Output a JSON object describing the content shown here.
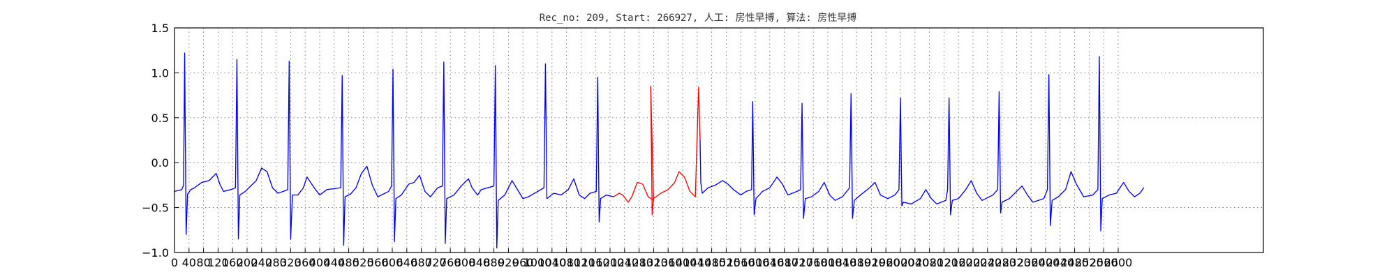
{
  "chart_data": {
    "type": "line",
    "title": "Rec_no: 209, Start: 266927, 人工: 房性早搏, 算法: 房性早搏",
    "xlabel": "",
    "ylabel": "",
    "xlim": [
      0,
      3000
    ],
    "ylim": [
      -1.0,
      1.5
    ],
    "grid": true,
    "legend": "none",
    "x_ticks": [
      0,
      40,
      80,
      120,
      160,
      200,
      240,
      280,
      320,
      360,
      400,
      440,
      480,
      520,
      560,
      600,
      640,
      680,
      720,
      760,
      800,
      840,
      880,
      920,
      960,
      1000,
      1040,
      1080,
      1120,
      1160,
      1200,
      1240,
      1280,
      1320,
      1360,
      1400,
      1440,
      1480,
      1520,
      1560,
      1600,
      1640,
      1680,
      1720,
      1760,
      1800,
      1840,
      1880,
      1920,
      1960,
      2000,
      2040,
      2080,
      2120,
      2160,
      2200,
      2240,
      2280,
      2320,
      2360,
      2400,
      2440,
      2480,
      2520,
      2560,
      2600
    ],
    "y_ticks": [
      -1.0,
      -0.5,
      0.0,
      0.5,
      1.0,
      1.5
    ],
    "y_tick_labels": [
      "−1.0",
      "−0.5",
      "0.0",
      "0.5",
      "1.0",
      "1.5"
    ],
    "series": [
      {
        "color": "#0000ff",
        "segments": [
          [
            [
              0,
              -0.32
            ],
            [
              20,
              -0.3
            ],
            [
              25,
              -0.25
            ],
            [
              28,
              1.22
            ],
            [
              32,
              -0.8
            ],
            [
              36,
              -0.35
            ],
            [
              45,
              -0.3
            ],
            [
              55,
              -0.28
            ],
            [
              75,
              -0.22
            ],
            [
              95,
              -0.2
            ],
            [
              115,
              -0.12
            ],
            [
              125,
              -0.24
            ],
            [
              135,
              -0.32
            ],
            [
              155,
              -0.3
            ],
            [
              168,
              -0.28
            ],
            [
              172,
              1.15
            ],
            [
              176,
              -0.85
            ],
            [
              180,
              -0.36
            ],
            [
              195,
              -0.32
            ],
            [
              205,
              -0.28
            ],
            [
              225,
              -0.2
            ],
            [
              240,
              -0.06
            ],
            [
              255,
              -0.1
            ],
            [
              270,
              -0.28
            ],
            [
              285,
              -0.34
            ],
            [
              300,
              -0.32
            ],
            [
              312,
              -0.3
            ],
            [
              316,
              1.13
            ],
            [
              320,
              -0.85
            ],
            [
              325,
              -0.36
            ],
            [
              340,
              -0.36
            ],
            [
              355,
              -0.28
            ],
            [
              365,
              -0.16
            ],
            [
              375,
              -0.22
            ],
            [
              385,
              -0.28
            ],
            [
              400,
              -0.36
            ],
            [
              420,
              -0.3
            ],
            [
              458,
              -0.28
            ],
            [
              462,
              0.97
            ],
            [
              466,
              -0.92
            ],
            [
              470,
              -0.38
            ],
            [
              485,
              -0.35
            ],
            [
              500,
              -0.28
            ],
            [
              515,
              -0.12
            ],
            [
              530,
              -0.04
            ],
            [
              545,
              -0.25
            ],
            [
              560,
              -0.38
            ],
            [
              590,
              -0.32
            ],
            [
              598,
              -0.26
            ],
            [
              602,
              1.04
            ],
            [
              606,
              -0.88
            ],
            [
              610,
              -0.4
            ],
            [
              625,
              -0.36
            ],
            [
              645,
              -0.24
            ],
            [
              660,
              -0.22
            ],
            [
              675,
              -0.14
            ],
            [
              690,
              -0.32
            ],
            [
              705,
              -0.38
            ],
            [
              725,
              -0.28
            ],
            [
              738,
              -0.26
            ],
            [
              742,
              1.12
            ],
            [
              746,
              -0.9
            ],
            [
              750,
              -0.4
            ],
            [
              770,
              -0.36
            ],
            [
              790,
              -0.26
            ],
            [
              810,
              -0.18
            ],
            [
              820,
              -0.28
            ],
            [
              835,
              -0.36
            ],
            [
              845,
              -0.3
            ],
            [
              880,
              -0.26
            ],
            [
              884,
              1.08
            ],
            [
              888,
              -0.95
            ],
            [
              892,
              -0.42
            ],
            [
              910,
              -0.36
            ],
            [
              930,
              -0.2
            ],
            [
              945,
              -0.3
            ],
            [
              960,
              -0.4
            ],
            [
              975,
              -0.38
            ],
            [
              1018,
              -0.28
            ],
            [
              1022,
              1.1
            ],
            [
              1026,
              -0.4
            ],
            [
              1045,
              -0.34
            ],
            [
              1065,
              -0.36
            ],
            [
              1085,
              -0.3
            ],
            [
              1100,
              -0.18
            ],
            [
              1115,
              -0.36
            ],
            [
              1130,
              -0.4
            ],
            [
              1145,
              -0.34
            ],
            [
              1162,
              -0.32
            ],
            [
              1166,
              0.95
            ],
            [
              1170,
              -0.66
            ],
            [
              1174,
              -0.4
            ],
            [
              1190,
              -0.36
            ],
            [
              1210,
              -0.38
            ]
          ],
          [
            [
              1448,
              0.26
            ],
            [
              1450,
              -0.22
            ],
            [
              1454,
              -0.34
            ],
            [
              1470,
              -0.28
            ],
            [
              1490,
              -0.25
            ],
            [
              1510,
              -0.2
            ],
            [
              1525,
              -0.24
            ],
            [
              1540,
              -0.3
            ],
            [
              1560,
              -0.36
            ],
            [
              1575,
              -0.32
            ],
            [
              1590,
              -0.3
            ],
            [
              1593,
              0.68
            ],
            [
              1597,
              -0.58
            ],
            [
              1602,
              -0.4
            ],
            [
              1620,
              -0.32
            ],
            [
              1640,
              -0.28
            ],
            [
              1660,
              -0.16
            ],
            [
              1675,
              -0.24
            ],
            [
              1690,
              -0.36
            ],
            [
              1715,
              -0.32
            ],
            [
              1725,
              -0.3
            ],
            [
              1729,
              0.66
            ],
            [
              1733,
              -0.62
            ],
            [
              1738,
              -0.4
            ],
            [
              1755,
              -0.38
            ],
            [
              1775,
              -0.32
            ],
            [
              1790,
              -0.22
            ],
            [
              1805,
              -0.36
            ],
            [
              1820,
              -0.42
            ],
            [
              1840,
              -0.38
            ],
            [
              1860,
              -0.28
            ],
            [
              1864,
              0.77
            ],
            [
              1868,
              -0.62
            ],
            [
              1873,
              -0.42
            ],
            [
              1890,
              -0.36
            ],
            [
              1915,
              -0.28
            ],
            [
              1930,
              -0.22
            ],
            [
              1945,
              -0.36
            ],
            [
              1965,
              -0.4
            ],
            [
              1985,
              -0.36
            ],
            [
              1996,
              -0.3
            ],
            [
              2000,
              0.72
            ],
            [
              2004,
              -0.48
            ],
            [
              2008,
              -0.44
            ],
            [
              2030,
              -0.46
            ],
            [
              2055,
              -0.4
            ],
            [
              2070,
              -0.3
            ],
            [
              2085,
              -0.4
            ],
            [
              2100,
              -0.46
            ],
            [
              2125,
              -0.42
            ],
            [
              2130,
              -0.3
            ],
            [
              2134,
              0.72
            ],
            [
              2138,
              -0.58
            ],
            [
              2143,
              -0.42
            ],
            [
              2160,
              -0.4
            ],
            [
              2180,
              -0.3
            ],
            [
              2195,
              -0.2
            ],
            [
              2210,
              -0.34
            ],
            [
              2225,
              -0.42
            ],
            [
              2255,
              -0.36
            ],
            [
              2268,
              -0.3
            ],
            [
              2272,
              0.79
            ],
            [
              2276,
              -0.56
            ],
            [
              2280,
              -0.44
            ],
            [
              2300,
              -0.4
            ],
            [
              2320,
              -0.32
            ],
            [
              2335,
              -0.26
            ],
            [
              2350,
              -0.36
            ],
            [
              2365,
              -0.44
            ],
            [
              2395,
              -0.4
            ],
            [
              2405,
              -0.3
            ],
            [
              2409,
              0.98
            ],
            [
              2413,
              -0.7
            ],
            [
              2418,
              -0.42
            ],
            [
              2435,
              -0.38
            ],
            [
              2455,
              -0.3
            ],
            [
              2470,
              -0.1
            ],
            [
              2485,
              -0.24
            ],
            [
              2505,
              -0.38
            ],
            [
              2530,
              -0.36
            ],
            [
              2544,
              -0.3
            ],
            [
              2548,
              1.18
            ],
            [
              2552,
              -0.76
            ],
            [
              2556,
              -0.4
            ],
            [
              2575,
              -0.36
            ],
            [
              2595,
              -0.34
            ],
            [
              2615,
              -0.22
            ],
            [
              2630,
              -0.32
            ],
            [
              2645,
              -0.38
            ],
            [
              2660,
              -0.34
            ],
            [
              2670,
              -0.28
            ]
          ]
        ]
      },
      {
        "color": "#ff0000",
        "segments": [
          [
            [
              1210,
              -0.38
            ],
            [
              1225,
              -0.34
            ],
            [
              1235,
              -0.36
            ],
            [
              1250,
              -0.44
            ],
            [
              1260,
              -0.38
            ],
            [
              1275,
              -0.22
            ],
            [
              1290,
              -0.24
            ],
            [
              1305,
              -0.38
            ],
            [
              1320,
              -0.42
            ],
            [
              1312,
              0.85
            ],
            [
              1316,
              -0.58
            ],
            [
              1320,
              -0.4
            ],
            [
              1340,
              -0.34
            ],
            [
              1360,
              -0.3
            ],
            [
              1378,
              -0.22
            ],
            [
              1390,
              -0.1
            ],
            [
              1405,
              -0.16
            ],
            [
              1420,
              -0.32
            ],
            [
              1435,
              -0.38
            ],
            [
              1444,
              0.84
            ],
            [
              1448,
              0.26
            ]
          ]
        ]
      }
    ]
  }
}
